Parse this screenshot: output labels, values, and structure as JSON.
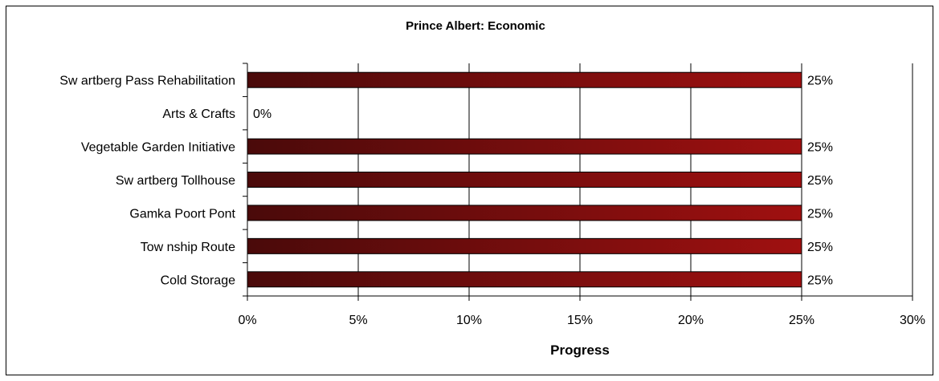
{
  "chart_data": {
    "type": "bar",
    "orientation": "horizontal",
    "title": "Prince Albert: Economic",
    "xlabel": "Progress",
    "ylabel": "",
    "categories": [
      "Sw artberg Pass Rehabilitation",
      "Arts & Crafts",
      "Vegetable Garden Initiative",
      "Sw artberg Tollhouse",
      "Gamka Poort Pont",
      "Tow nship Route",
      "Cold Storage"
    ],
    "values": [
      25,
      0,
      25,
      25,
      25,
      25,
      25
    ],
    "data_labels": [
      "25%",
      "0%",
      "25%",
      "25%",
      "25%",
      "25%",
      "25%"
    ],
    "xlim": [
      0,
      30
    ],
    "x_ticks": [
      "0%",
      "5%",
      "10%",
      "15%",
      "20%",
      "25%",
      "30%"
    ],
    "x_tick_values": [
      0,
      5,
      10,
      15,
      20,
      25,
      30
    ],
    "grid": "vertical",
    "legend": "none",
    "colors": {
      "bar_start": "#4a0a0a",
      "bar_end": "#a01010",
      "grid": "#000000",
      "background": "#ffffff"
    }
  }
}
